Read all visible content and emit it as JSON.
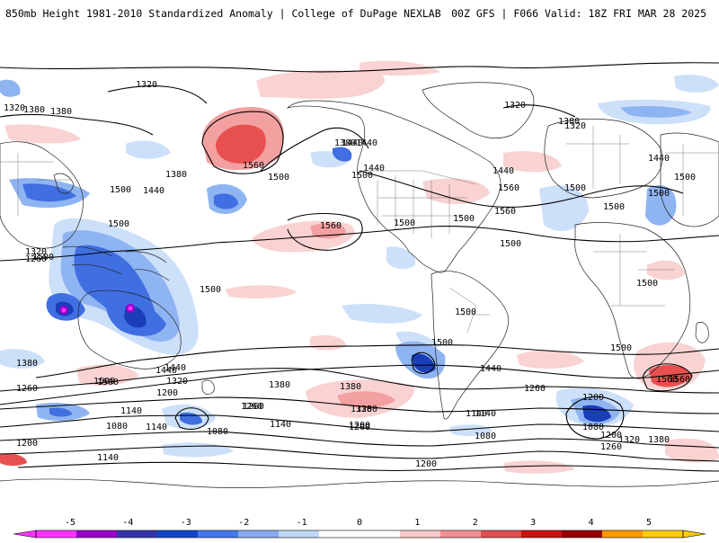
{
  "header": {
    "title": "850mb Height 1981-2010 Standardized Anomaly | College of DuPage NEXLAB",
    "run_info": "00Z GFS | F066 Valid: 18Z FRI MAR 28 2025"
  },
  "colorbar": {
    "ticks": [
      "-5",
      "-4",
      "-3",
      "-2",
      "-1",
      "0",
      "1",
      "2",
      "3",
      "4",
      "5"
    ],
    "colors": [
      "#ff33ff",
      "#9900cc",
      "#3333aa",
      "#1144cc",
      "#4477ee",
      "#88aaf0",
      "#c0d8f8",
      "#ffffff",
      "#ffffff",
      "#f8c8c8",
      "#f09090",
      "#e05050",
      "#cc1111",
      "#990000",
      "#ff9900",
      "#ffcc00"
    ]
  },
  "anomaly_colors": {
    "pos1": "#f9d2d2",
    "pos2": "#f2a0a0",
    "pos3": "#e85050",
    "neg1": "#cde0fa",
    "neg2": "#8fb4f2",
    "neg3": "#3f6fe0",
    "neg4": "#1a3db8"
  },
  "contour_labels": [
    "1320",
    "1380",
    "1320",
    "1380",
    "1560",
    "1500",
    "1380",
    "1440",
    "1380",
    "1320",
    "1440",
    "1500",
    "1440",
    "1380",
    "1320",
    "1500",
    "1500",
    "1500",
    "1560",
    "1500",
    "1440",
    "1500",
    "1440",
    "1500",
    "1560",
    "1500",
    "1560",
    "1500",
    "1440",
    "1320",
    "1260",
    "1500",
    "1500",
    "1500",
    "1500",
    "1500",
    "1440",
    "1500",
    "1380",
    "1560",
    "1500",
    "1440",
    "1320",
    "1200",
    "1260",
    "1440",
    "1380",
    "1260",
    "1140",
    "1320",
    "1380",
    "1140",
    "1200",
    "1080",
    "1200",
    "1080",
    "1140",
    "1260",
    "1200",
    "1140",
    "1080",
    "1200",
    "1080",
    "1260",
    "1200",
    "1380",
    "1560",
    "1500",
    "1200",
    "1140",
    "1260",
    "1380",
    "1140",
    "1320",
    "1500"
  ],
  "legend": {
    "hex_map": "GFS standardized anomaly shading"
  }
}
